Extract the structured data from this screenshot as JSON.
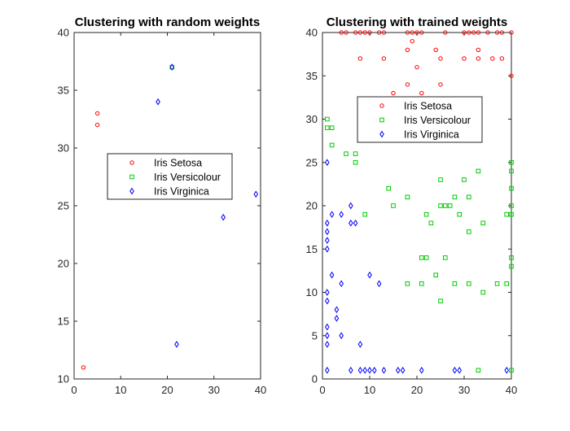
{
  "colors": {
    "setosa": "#ff0000",
    "versicolour": "#00cc00",
    "virginica": "#0000ff",
    "axis": "#262626"
  },
  "legend_labels": [
    "Iris Setosa",
    "Iris Versicolour",
    "Iris Virginica"
  ],
  "chart_data": [
    {
      "type": "scatter",
      "title": "Clustering with random weights",
      "xlim": [
        0,
        40
      ],
      "ylim": [
        10,
        40
      ],
      "xticks": [
        0,
        10,
        20,
        30,
        40
      ],
      "yticks": [
        10,
        15,
        20,
        25,
        30,
        35,
        40
      ],
      "grid": false,
      "legend_position": "center",
      "series": [
        {
          "name": "Iris Setosa",
          "marker": "circle",
          "points": [
            [
              2,
              11
            ],
            [
              5,
              32
            ],
            [
              5,
              33
            ]
          ]
        },
        {
          "name": "Iris Versicolour",
          "marker": "square",
          "points": [
            [
              21,
              37
            ]
          ]
        },
        {
          "name": "Iris Virginica",
          "marker": "diamond",
          "points": [
            [
              21,
              37
            ],
            [
              18,
              34
            ],
            [
              39,
              26
            ],
            [
              32,
              24
            ],
            [
              22,
              13
            ]
          ]
        }
      ]
    },
    {
      "type": "scatter",
      "title": "Clustering with trained weights",
      "xlim": [
        0,
        40
      ],
      "ylim": [
        0,
        40
      ],
      "xticks": [
        0,
        10,
        20,
        30,
        40
      ],
      "yticks": [
        0,
        5,
        10,
        15,
        20,
        25,
        30,
        35,
        40
      ],
      "grid": false,
      "legend_position": "top-center",
      "series": [
        {
          "name": "Iris Setosa",
          "marker": "circle",
          "points": [
            [
              4,
              40
            ],
            [
              5,
              40
            ],
            [
              7,
              40
            ],
            [
              8,
              40
            ],
            [
              9,
              40
            ],
            [
              10,
              40
            ],
            [
              12,
              40
            ],
            [
              13,
              40
            ],
            [
              18,
              40
            ],
            [
              19,
              40
            ],
            [
              20,
              40
            ],
            [
              21,
              40
            ],
            [
              26,
              40
            ],
            [
              30,
              40
            ],
            [
              31,
              40
            ],
            [
              32,
              40
            ],
            [
              33,
              40
            ],
            [
              35,
              40
            ],
            [
              37,
              40
            ],
            [
              38,
              40
            ],
            [
              40,
              40
            ],
            [
              19,
              39
            ],
            [
              18,
              38
            ],
            [
              24,
              38
            ],
            [
              33,
              38
            ],
            [
              8,
              37
            ],
            [
              13,
              37
            ],
            [
              25,
              37
            ],
            [
              30,
              37
            ],
            [
              33,
              37
            ],
            [
              36,
              37
            ],
            [
              38,
              37
            ],
            [
              20,
              36
            ],
            [
              40,
              35
            ],
            [
              18,
              34
            ],
            [
              25,
              34
            ],
            [
              15,
              33
            ],
            [
              21,
              33
            ]
          ]
        },
        {
          "name": "Iris Versicolour",
          "marker": "square",
          "points": [
            [
              1,
              30
            ],
            [
              1,
              29
            ],
            [
              2,
              29
            ],
            [
              2,
              27
            ],
            [
              5,
              26
            ],
            [
              7,
              26
            ],
            [
              7,
              25
            ],
            [
              40,
              25
            ],
            [
              33,
              24
            ],
            [
              40,
              24
            ],
            [
              25,
              23
            ],
            [
              30,
              23
            ],
            [
              14,
              22
            ],
            [
              40,
              22
            ],
            [
              28,
              21
            ],
            [
              31,
              21
            ],
            [
              18,
              21
            ],
            [
              15,
              20
            ],
            [
              25,
              20
            ],
            [
              26,
              20
            ],
            [
              27,
              20
            ],
            [
              40,
              20
            ],
            [
              9,
              19
            ],
            [
              22,
              19
            ],
            [
              29,
              19
            ],
            [
              40,
              19
            ],
            [
              39,
              19
            ],
            [
              34,
              18
            ],
            [
              23,
              18
            ],
            [
              31,
              17
            ],
            [
              21,
              14
            ],
            [
              22,
              14
            ],
            [
              26,
              14
            ],
            [
              40,
              14
            ],
            [
              40,
              13
            ],
            [
              24,
              12
            ],
            [
              18,
              11
            ],
            [
              21,
              11
            ],
            [
              28,
              11
            ],
            [
              31,
              11
            ],
            [
              37,
              11
            ],
            [
              39,
              11
            ],
            [
              34,
              10
            ],
            [
              25,
              9
            ],
            [
              33,
              1
            ],
            [
              40,
              1
            ]
          ]
        },
        {
          "name": "Iris Virginica",
          "marker": "diamond",
          "points": [
            [
              1,
              25
            ],
            [
              2,
              19
            ],
            [
              4,
              19
            ],
            [
              6,
              20
            ],
            [
              1,
              18
            ],
            [
              6,
              18
            ],
            [
              7,
              18
            ],
            [
              1,
              17
            ],
            [
              1,
              16
            ],
            [
              1,
              15
            ],
            [
              2,
              12
            ],
            [
              10,
              12
            ],
            [
              4,
              11
            ],
            [
              12,
              11
            ],
            [
              1,
              10
            ],
            [
              1,
              9
            ],
            [
              3,
              8
            ],
            [
              3,
              7
            ],
            [
              1,
              6
            ],
            [
              1,
              5
            ],
            [
              4,
              5
            ],
            [
              1,
              4
            ],
            [
              8,
              4
            ],
            [
              1,
              1
            ],
            [
              6,
              1
            ],
            [
              8,
              1
            ],
            [
              9,
              1
            ],
            [
              10,
              1
            ],
            [
              11,
              1
            ],
            [
              13,
              1
            ],
            [
              16,
              1
            ],
            [
              17,
              1
            ],
            [
              21,
              1
            ],
            [
              28,
              1
            ],
            [
              29,
              1
            ],
            [
              39,
              1
            ]
          ]
        }
      ]
    }
  ]
}
